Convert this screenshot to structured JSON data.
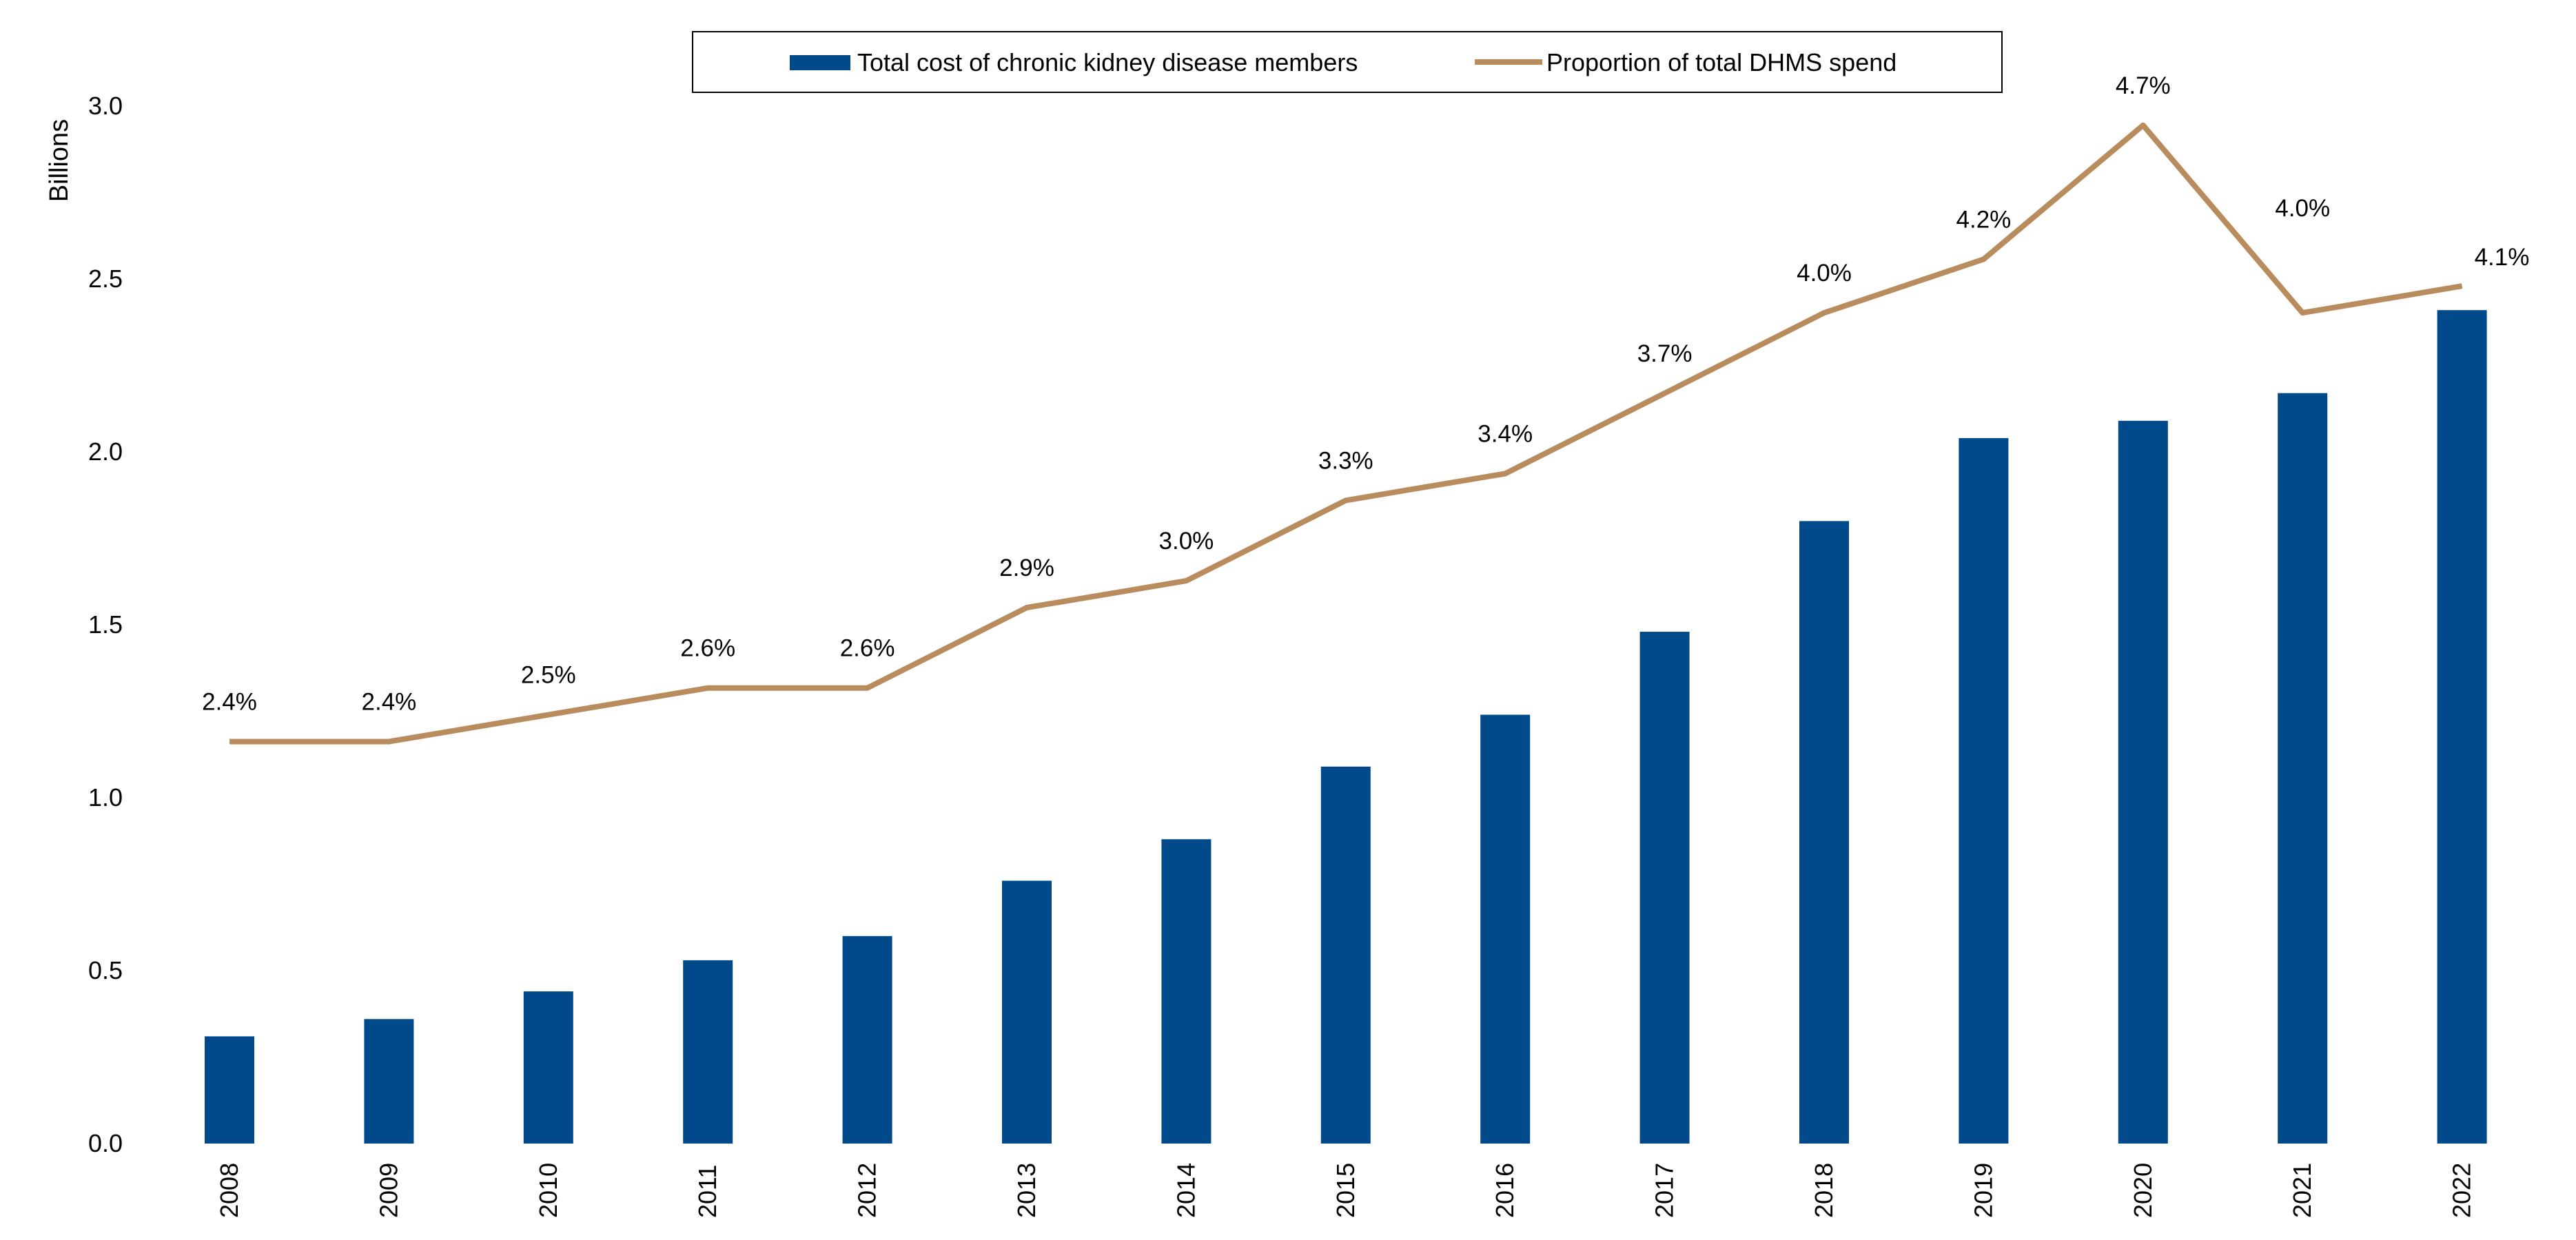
{
  "chart_data": {
    "type": "bar",
    "categories": [
      "2008",
      "2009",
      "2010",
      "2011",
      "2012",
      "2013",
      "2014",
      "2015",
      "2016",
      "2017",
      "2018",
      "2019",
      "2020",
      "2021",
      "2022"
    ],
    "series": [
      {
        "name": "Total cost of chronic kidney disease members",
        "type": "bar",
        "axis": "left",
        "color": "#004a8c",
        "values": [
          0.31,
          0.36,
          0.44,
          0.53,
          0.6,
          0.76,
          0.88,
          1.09,
          1.24,
          1.48,
          1.8,
          2.04,
          2.09,
          2.17,
          2.41
        ]
      },
      {
        "name": "Proportion of total DHMS spend",
        "type": "line",
        "axis": "right",
        "color": "#b98c5e",
        "values": [
          2.4,
          2.4,
          2.5,
          2.6,
          2.6,
          2.9,
          3.0,
          3.3,
          3.4,
          3.7,
          4.0,
          4.2,
          4.7,
          4.0,
          4.1
        ],
        "data_labels": [
          "2.4%",
          "2.4%",
          "2.5%",
          "2.6%",
          "2.6%",
          "2.9%",
          "3.0%",
          "3.3%",
          "3.4%",
          "3.7%",
          "4.0%",
          "4.2%",
          "4.7%",
          "4.0%",
          "4.1%"
        ]
      }
    ],
    "ylabel": "Billions",
    "ylim": [
      0,
      3.0
    ],
    "yticks": [
      "0.0",
      "0.5",
      "1.0",
      "1.5",
      "2.0",
      "2.5",
      "3.0"
    ],
    "secondary_axis_hidden": true,
    "grid": false,
    "legend": {
      "position": "top",
      "boxed": true
    }
  }
}
